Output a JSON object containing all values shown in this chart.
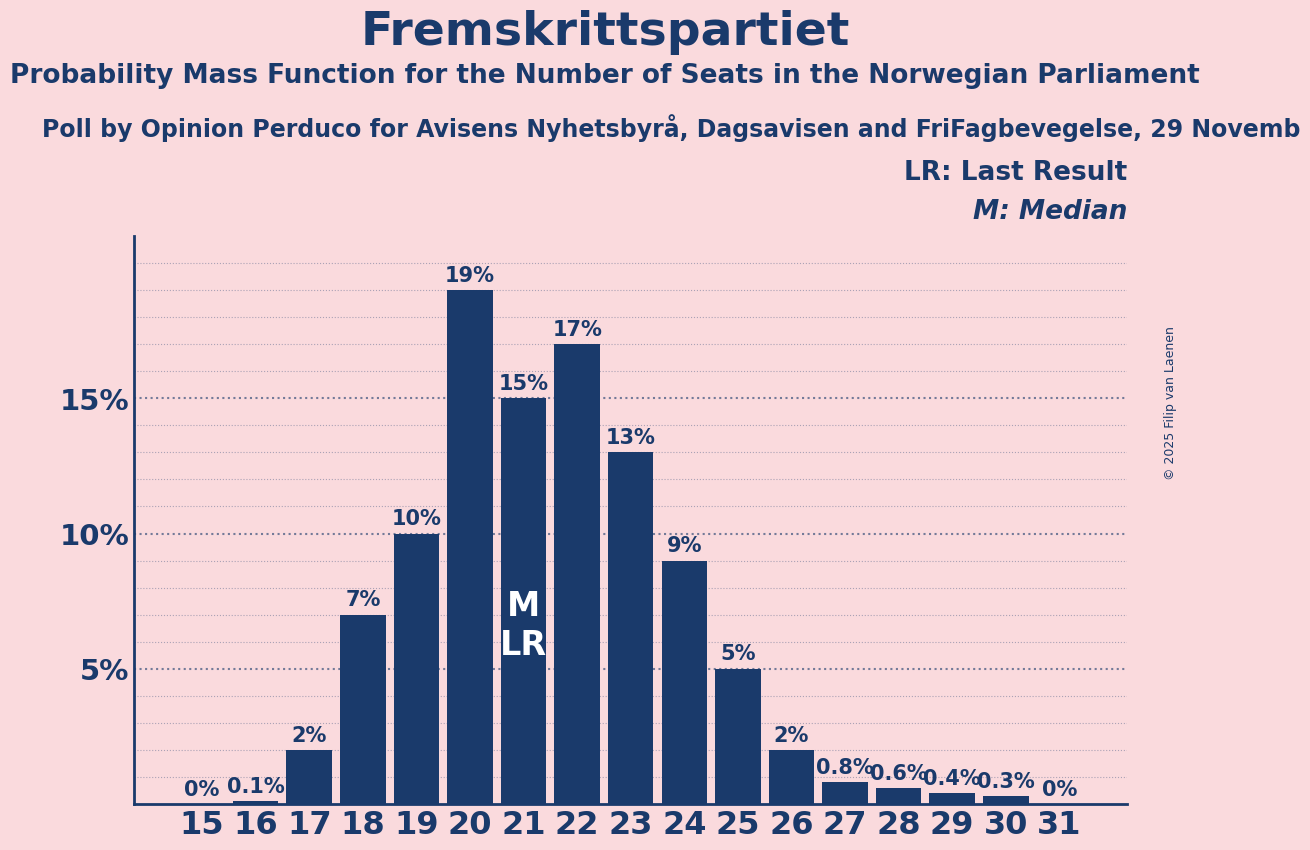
{
  "title": "Fremskrittspartiet",
  "subtitle": "Probability Mass Function for the Number of Seats in the Norwegian Parliament",
  "source": "Poll by Opinion Perduco for Avisens Nyhetsbyrå, Dagsavisen and FriFagbevegelse, 29 Novemb",
  "copyright": "© 2025 Filip van Laenen",
  "legend_lr": "LR: Last Result",
  "legend_m": "M: Median",
  "categories": [
    15,
    16,
    17,
    18,
    19,
    20,
    21,
    22,
    23,
    24,
    25,
    26,
    27,
    28,
    29,
    30,
    31
  ],
  "values": [
    0.0,
    0.1,
    2.0,
    7.0,
    10.0,
    19.0,
    15.0,
    17.0,
    13.0,
    9.0,
    5.0,
    2.0,
    0.8,
    0.6,
    0.4,
    0.3,
    0.0
  ],
  "bar_labels": [
    "0%",
    "0.1%",
    "2%",
    "7%",
    "10%",
    "19%",
    "15%",
    "17%",
    "13%",
    "9%",
    "5%",
    "2%",
    "0.8%",
    "0.6%",
    "0.4%",
    "0.3%",
    "0%"
  ],
  "median_seat": 21,
  "lr_seat": 21,
  "bar_color": "#1a3a6b",
  "background_color": "#fadadd",
  "text_color": "#1a3a6b",
  "title_fontsize": 34,
  "subtitle_fontsize": 19,
  "source_fontsize": 17,
  "ylabel_fontsize": 21,
  "xlabel_fontsize": 23,
  "bar_label_fontsize": 15,
  "legend_fontsize": 19,
  "mlr_fontsize": 24,
  "ylim": [
    0,
    21
  ],
  "yticks": [
    0,
    5,
    10,
    15
  ],
  "minor_grid_vals": [
    1,
    2,
    3,
    4,
    6,
    7,
    8,
    9,
    11,
    12,
    13,
    14,
    16,
    17,
    18,
    19,
    20
  ]
}
